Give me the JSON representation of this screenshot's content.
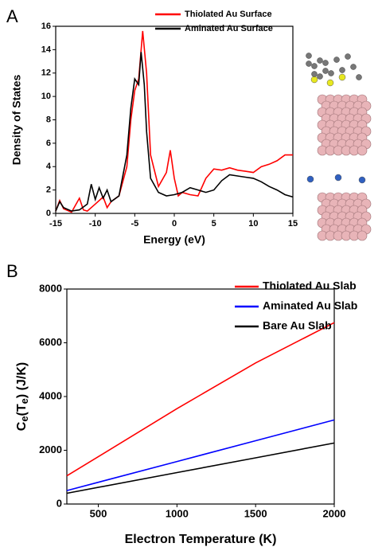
{
  "chart_data": [
    {
      "type": "line",
      "panel": "A",
      "xlabel": "Energy (eV)",
      "ylabel": "Density of States",
      "xlim": [
        -15,
        15
      ],
      "ylim": [
        0,
        16
      ],
      "xticks": [
        -15,
        -10,
        -5,
        0,
        5,
        10,
        15
      ],
      "yticks": [
        0,
        2,
        4,
        6,
        8,
        10,
        12,
        14,
        16
      ],
      "legend": "top",
      "series": [
        {
          "name": "Thiolated Au Surface",
          "color": "#ff0000",
          "x": [
            -15,
            -14.5,
            -14,
            -13,
            -12,
            -11.5,
            -11,
            -10,
            -9,
            -8.5,
            -8,
            -7,
            -6,
            -5.5,
            -5,
            -4.5,
            -4,
            -3.5,
            -3,
            -2,
            -1,
            -0.5,
            0,
            0.5,
            1,
            2,
            3,
            4,
            5,
            6,
            7,
            8,
            9,
            10,
            11,
            12,
            13,
            14,
            15
          ],
          "values": [
            0.2,
            1.1,
            0.4,
            0.1,
            1.3,
            0.3,
            0.2,
            0.8,
            1.4,
            0.5,
            1,
            1.5,
            4,
            8,
            10.5,
            11.5,
            15.6,
            12,
            5,
            2.3,
            3.5,
            5.4,
            3,
            1.5,
            1.8,
            1.6,
            1.5,
            3,
            3.8,
            3.7,
            3.9,
            3.7,
            3.6,
            3.5,
            4,
            4.2,
            4.5,
            5,
            5
          ]
        },
        {
          "name": "Aminated Au Surface",
          "color": "#000000",
          "x": [
            -15,
            -14.5,
            -14,
            -13,
            -12,
            -11,
            -10.5,
            -10,
            -9.5,
            -9,
            -8.5,
            -8,
            -7,
            -6,
            -5.5,
            -5,
            -4.5,
            -4.2,
            -3.8,
            -3.5,
            -3,
            -2,
            -1,
            0,
            1,
            2,
            3,
            4,
            5,
            6,
            7,
            8,
            9,
            10,
            11,
            12,
            13,
            14,
            15
          ],
          "values": [
            0.2,
            1,
            0.5,
            0.2,
            0.3,
            0.8,
            2.5,
            1.2,
            2.2,
            1.3,
            2,
            1,
            1.5,
            5,
            9,
            11.5,
            11,
            13.8,
            11,
            7,
            3,
            1.8,
            1.5,
            1.6,
            1.8,
            2.2,
            2,
            1.8,
            2,
            2.8,
            3.3,
            3.2,
            3.1,
            3,
            2.7,
            2.3,
            2,
            1.6,
            1.4
          ]
        }
      ]
    },
    {
      "type": "line",
      "panel": "B",
      "xlabel": "Electron Temperature (K)",
      "ylabel_parts": [
        "C",
        "e",
        "(T",
        "e",
        ") (J/K)"
      ],
      "xlim": [
        300,
        2000
      ],
      "ylim": [
        0,
        8000
      ],
      "xticks": [
        500,
        1000,
        1500,
        2000
      ],
      "yticks": [
        0,
        2000,
        4000,
        6000,
        8000
      ],
      "legend": "top right",
      "series": [
        {
          "name": "Thiolated Au Slab",
          "color": "#ff0000",
          "x": [
            300,
            1000,
            1500,
            2000
          ],
          "values": [
            1050,
            3550,
            5250,
            6750
          ]
        },
        {
          "name": "Aminated Au Slab",
          "color": "#0000ff",
          "x": [
            300,
            1000,
            1500,
            2000
          ],
          "values": [
            500,
            1583,
            2356,
            3130
          ]
        },
        {
          "name": "Bare Au Slab",
          "color": "#000000",
          "x": [
            300,
            1000,
            1500,
            2000
          ],
          "values": [
            400,
            1170,
            1720,
            2270
          ]
        }
      ]
    }
  ]
}
